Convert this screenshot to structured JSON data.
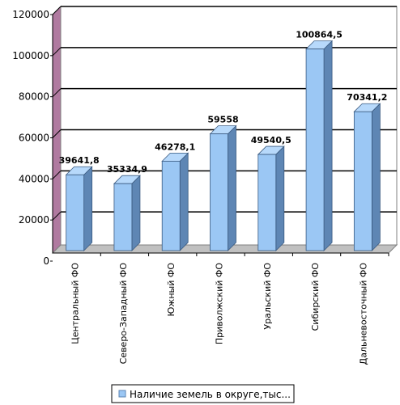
{
  "chart_data": {
    "type": "bar",
    "categories": [
      "Центральный ФО",
      "Северо-Западный ФО",
      "Южный ФО",
      "Приволжский ФО",
      "Уральский ФО",
      "Сибирский ФО",
      "Дальневосточный ФО"
    ],
    "series": [
      {
        "name": "Наличие земель в округе,тыс...",
        "values": [
          39641.8,
          35334.9,
          46278.1,
          59558,
          49540.5,
          100864.5,
          70341.2
        ]
      }
    ],
    "data_labels": [
      "39641,8",
      "35334,9",
      "46278,1",
      "59558",
      "49540,5",
      "100864,5",
      "70341,2"
    ],
    "y_ticks": [
      "0",
      "20000",
      "40000",
      "60000",
      "80000",
      "100000",
      "120000"
    ],
    "ylim": [
      0,
      120000
    ],
    "grid": true,
    "legend_position": "bottom",
    "colors": {
      "bar_front": "#9bc7f4",
      "bar_side": "#5e86b4",
      "bar_top": "#b7d9fb",
      "wall": "#b07aa0",
      "gridline": "#000000"
    }
  }
}
